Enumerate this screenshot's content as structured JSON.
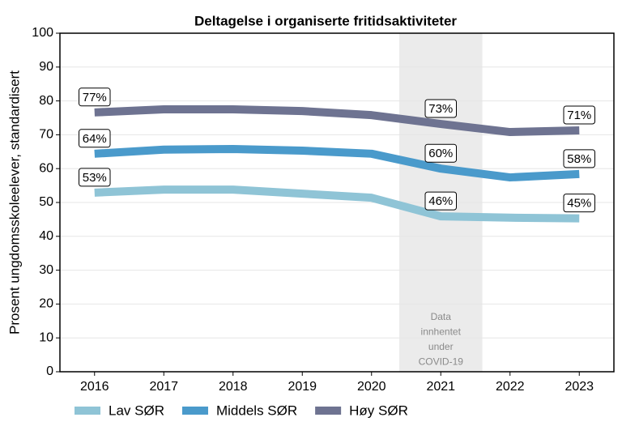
{
  "chart_data": {
    "type": "line",
    "title": "Deltagelse i organiserte fritidsaktiviteter",
    "y_label": "Prosent ungdomsskoleelever, standardisert",
    "x": [
      2016,
      2017,
      2018,
      2019,
      2020,
      2021,
      2022,
      2023
    ],
    "series": [
      {
        "name": "Lav SØR",
        "color": "#8fc4d6",
        "values": [
          52.9,
          53.8,
          53.8,
          52.6,
          51.4,
          45.9,
          45.5,
          45.3
        ],
        "value_labels": [
          "53%",
          null,
          null,
          null,
          null,
          "46%",
          null,
          "45%"
        ]
      },
      {
        "name": "Middels SØR",
        "color": "#4a9acb",
        "values": [
          64.4,
          65.6,
          65.8,
          65.3,
          64.4,
          60.0,
          57.4,
          58.4
        ],
        "value_labels": [
          "64%",
          null,
          null,
          null,
          null,
          "60%",
          null,
          "58%"
        ]
      },
      {
        "name": "Høy SØR",
        "color": "#6e7391",
        "values": [
          76.6,
          77.5,
          77.5,
          77.0,
          75.8,
          73.2,
          70.8,
          71.3
        ],
        "value_labels": [
          "77%",
          null,
          null,
          null,
          null,
          "73%",
          null,
          "71%"
        ]
      }
    ],
    "shade": {
      "from": 2020.4,
      "to": 2021.6,
      "color": "#ebebeb",
      "label": [
        "Data",
        "innhentet",
        "under",
        "COVID-19"
      ]
    },
    "xlim": [
      2015.5,
      2023.5
    ],
    "xticks": [
      2016,
      2017,
      2018,
      2019,
      2020,
      2021,
      2022,
      2023
    ],
    "ylim": [
      0,
      100
    ],
    "yticks": [
      0,
      10,
      20,
      30,
      40,
      50,
      60,
      70,
      80,
      90,
      100
    ],
    "grid": true,
    "legend": "bottom"
  }
}
